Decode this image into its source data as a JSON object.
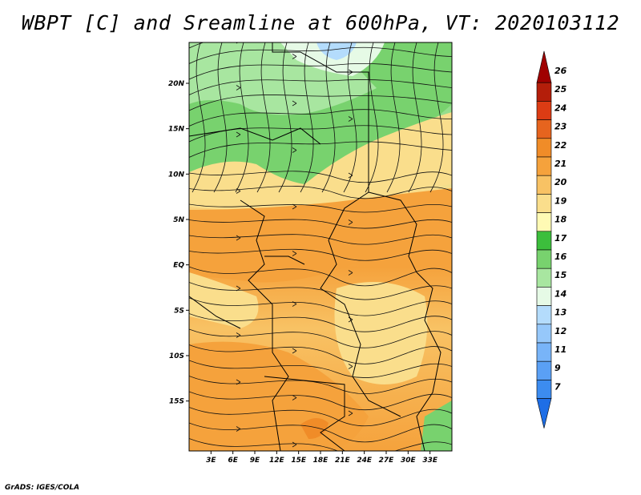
{
  "title": "WBPT [C] and Sreamline at 600hPa, VT: 2020103112",
  "footer": "GrADS: IGES/COLA",
  "map": {
    "lon_range": [
      0,
      36
    ],
    "lat_range": [
      -20.5,
      24.5
    ],
    "lon_ticks": [
      "3E",
      "6E",
      "9E",
      "12E",
      "15E",
      "18E",
      "21E",
      "24E",
      "27E",
      "30E",
      "33E"
    ],
    "lon_tick_values": [
      3,
      6,
      9,
      12,
      15,
      18,
      21,
      24,
      27,
      30,
      33
    ],
    "lat_ticks": [
      "20N",
      "15N",
      "10N",
      "5N",
      "EQ",
      "5S",
      "10S",
      "15S"
    ],
    "lat_tick_values": [
      20,
      15,
      10,
      5,
      0,
      -5,
      -10,
      -15
    ]
  },
  "colorbar": {
    "labels": [
      "7",
      "9",
      "11",
      "12",
      "13",
      "14",
      "15",
      "16",
      "17",
      "18",
      "19",
      "20",
      "21",
      "22",
      "23",
      "24",
      "25",
      "26"
    ],
    "colors": [
      "#1e6ee6",
      "#3c8cf0",
      "#5aa0f5",
      "#78b4f8",
      "#96c8fa",
      "#b4dcfc",
      "#e6fae6",
      "#a8e6a0",
      "#78d26e",
      "#3cbe3c",
      "#fffab4",
      "#fade8c",
      "#f8c264",
      "#f5a23c",
      "#f08c28",
      "#e6641e",
      "#dc3c14",
      "#b41e0a",
      "#a00000"
    ]
  }
}
